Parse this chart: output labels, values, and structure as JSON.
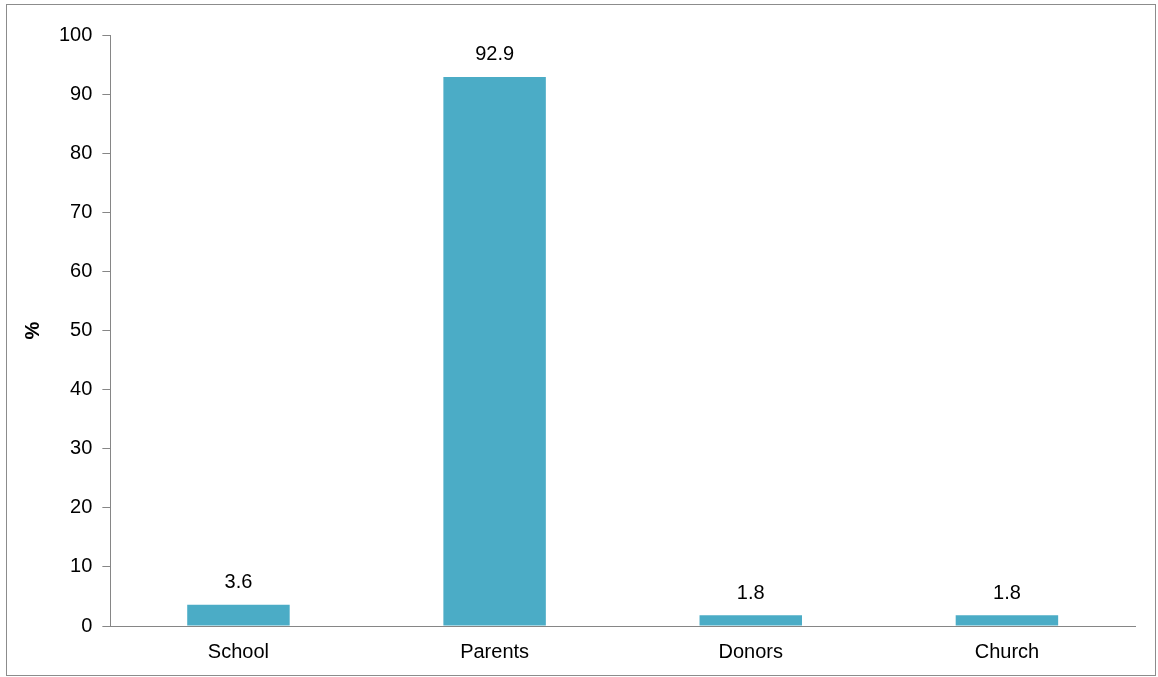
{
  "chart_data": {
    "type": "bar",
    "ylabel": "%",
    "categories": [
      "School",
      "Parents",
      "Donors",
      "Church"
    ],
    "values": [
      3.6,
      92.9,
      1.8,
      1.8
    ],
    "color": "#4bacc6",
    "ylim": [
      0,
      100
    ],
    "yticks": [
      0,
      10,
      20,
      30,
      40,
      50,
      60,
      70,
      80,
      90,
      100
    ],
    "data_labels": true,
    "grid": false,
    "legend": false
  }
}
